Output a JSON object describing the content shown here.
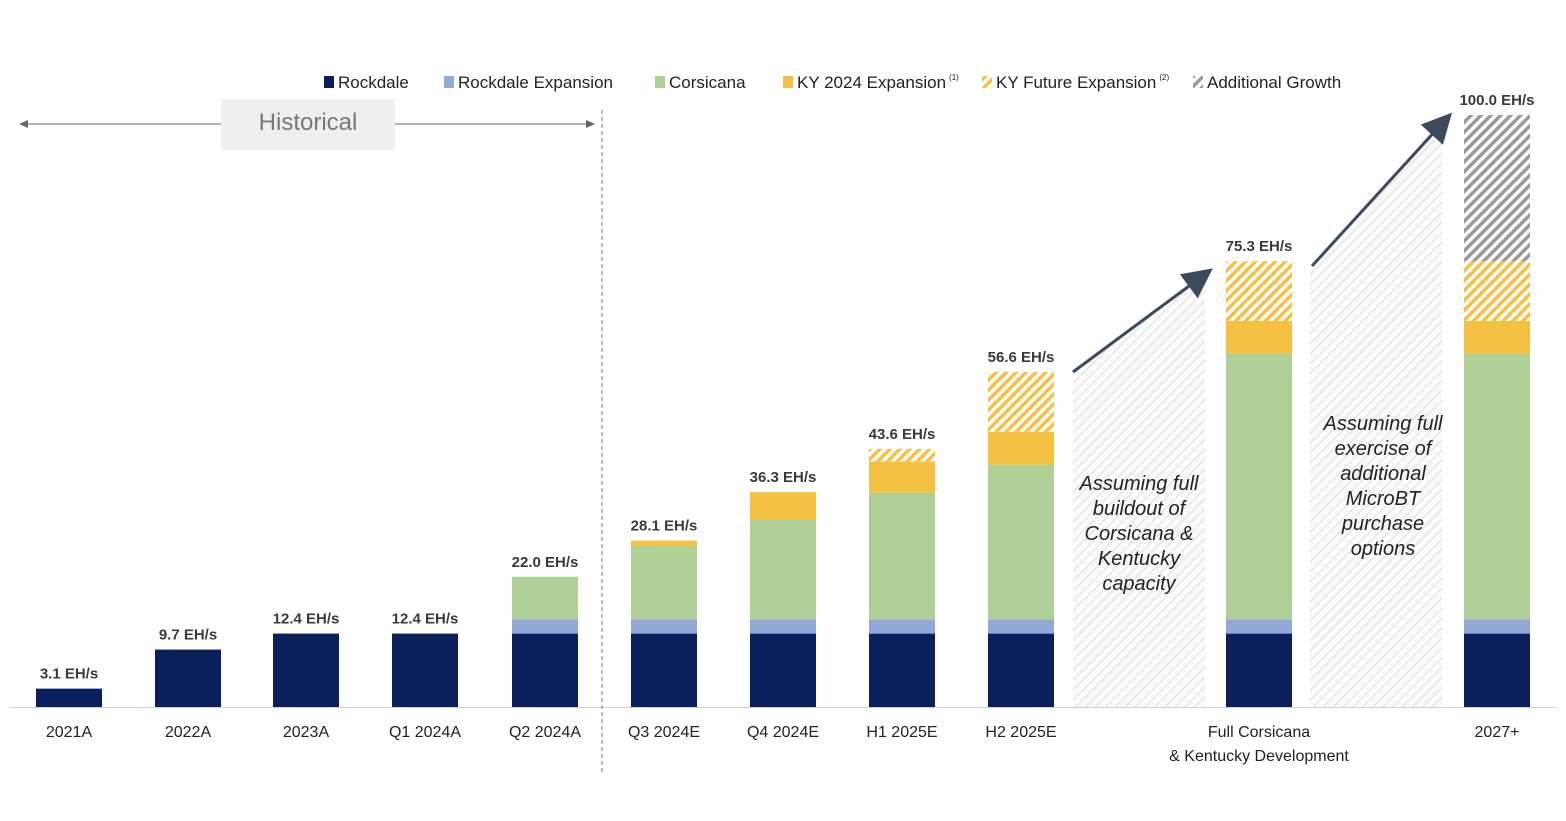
{
  "chart_data": {
    "type": "bar",
    "stacked": true,
    "unit": "EH/s",
    "categories": [
      "2021A",
      "2022A",
      "2023A",
      "Q1 2024A",
      "Q2 2024A",
      "Q3 2024E",
      "Q4 2024E",
      "H1 2025E",
      "H2 2025E",
      "Full Corsicana & Kentucky Development",
      "2027+"
    ],
    "category_lines": [
      [
        "2021A"
      ],
      [
        "2022A"
      ],
      [
        "2023A"
      ],
      [
        "Q1 2024A"
      ],
      [
        "Q2 2024A"
      ],
      [
        "Q3 2024E"
      ],
      [
        "Q4 2024E"
      ],
      [
        "H1 2025E"
      ],
      [
        "H2 2025E"
      ],
      [
        "Full Corsicana",
        "& Kentucky Development"
      ],
      [
        "2027+"
      ]
    ],
    "totals_labels": [
      "3.1 EH/s",
      "9.7 EH/s",
      "12.4 EH/s",
      "12.4 EH/s",
      "22.0 EH/s",
      "28.1 EH/s",
      "36.3 EH/s",
      "43.6 EH/s",
      "56.6 EH/s",
      "75.3 EH/s",
      "100.0 EH/s"
    ],
    "series": [
      {
        "name": "Rockdale",
        "color": "#0a1f5c",
        "pattern": "solid",
        "values": [
          3.1,
          9.7,
          12.4,
          12.4,
          12.4,
          12.4,
          12.4,
          12.4,
          12.4,
          12.4,
          12.4
        ]
      },
      {
        "name": "Rockdale Expansion",
        "color": "#94a8d8",
        "pattern": "solid",
        "values": [
          0,
          0,
          0,
          0,
          2.4,
          2.4,
          2.4,
          2.4,
          2.4,
          2.4,
          2.4
        ]
      },
      {
        "name": "Corsicana",
        "color": "#aecf96",
        "pattern": "solid",
        "values": [
          0,
          0,
          0,
          0,
          7.2,
          12.4,
          16.8,
          21.4,
          26.1,
          44.9,
          44.9
        ]
      },
      {
        "name": "KY 2024 Expansion",
        "sup": "(1)",
        "color": "#f4c142",
        "pattern": "solid",
        "values": [
          0,
          0,
          0,
          0,
          0,
          0.9,
          4.7,
          5.3,
          5.6,
          5.5,
          5.5
        ]
      },
      {
        "name": "KY Future Expansion",
        "sup": "(2)",
        "color": "#f4c142",
        "pattern": "hatched",
        "values": [
          0,
          0,
          0,
          0,
          0,
          0,
          0,
          2.1,
          10.1,
          10.1,
          10.1
        ]
      },
      {
        "name": "Additional Growth",
        "color": "#9a9a9a",
        "pattern": "hatched",
        "values": [
          0,
          0,
          0,
          0,
          0,
          0,
          0,
          0,
          0,
          0,
          24.7
        ]
      }
    ],
    "ylim": [
      0,
      100
    ],
    "grid": false,
    "legend": "top",
    "historical_label": "Historical",
    "annotations": [
      [
        "Assuming full",
        "buildout of",
        "Corsicana &",
        "Kentucky",
        "capacity"
      ],
      [
        "Assuming full",
        "exercise of",
        "additional",
        "MicroBT",
        "purchase",
        "options"
      ]
    ]
  }
}
